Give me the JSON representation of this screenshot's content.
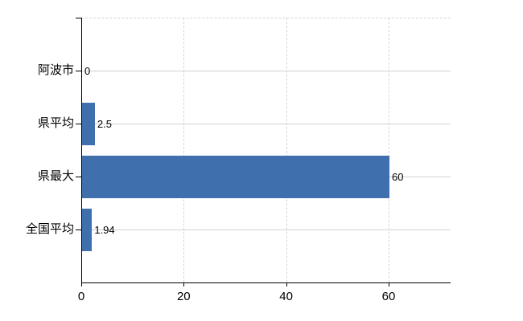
{
  "chart_data": {
    "type": "bar",
    "orientation": "horizontal",
    "title": "",
    "xlabel": "",
    "ylabel": "",
    "categories": [
      "阿波市",
      "県平均",
      "県最大",
      "全国平均"
    ],
    "values": [
      0,
      2.5,
      60,
      1.94
    ],
    "data_labels": [
      "0",
      "2.5",
      "60",
      "1.94"
    ],
    "x_ticks": [
      0,
      20,
      40,
      60
    ],
    "x_tick_labels": [
      "0",
      "20",
      "40",
      "60"
    ],
    "xlim": [
      0,
      72.1
    ],
    "legend": "none",
    "grid": {
      "horizontal": "solid",
      "vertical": "dashed",
      "top_border": "dashed"
    },
    "colors": {
      "bar": "#3f6fad",
      "axis": "#000000",
      "horizontal_gridline": "#ccd5cc",
      "vertical_gridline": "#d8d3d8",
      "text": "#000000",
      "background": "#ffffff"
    }
  }
}
